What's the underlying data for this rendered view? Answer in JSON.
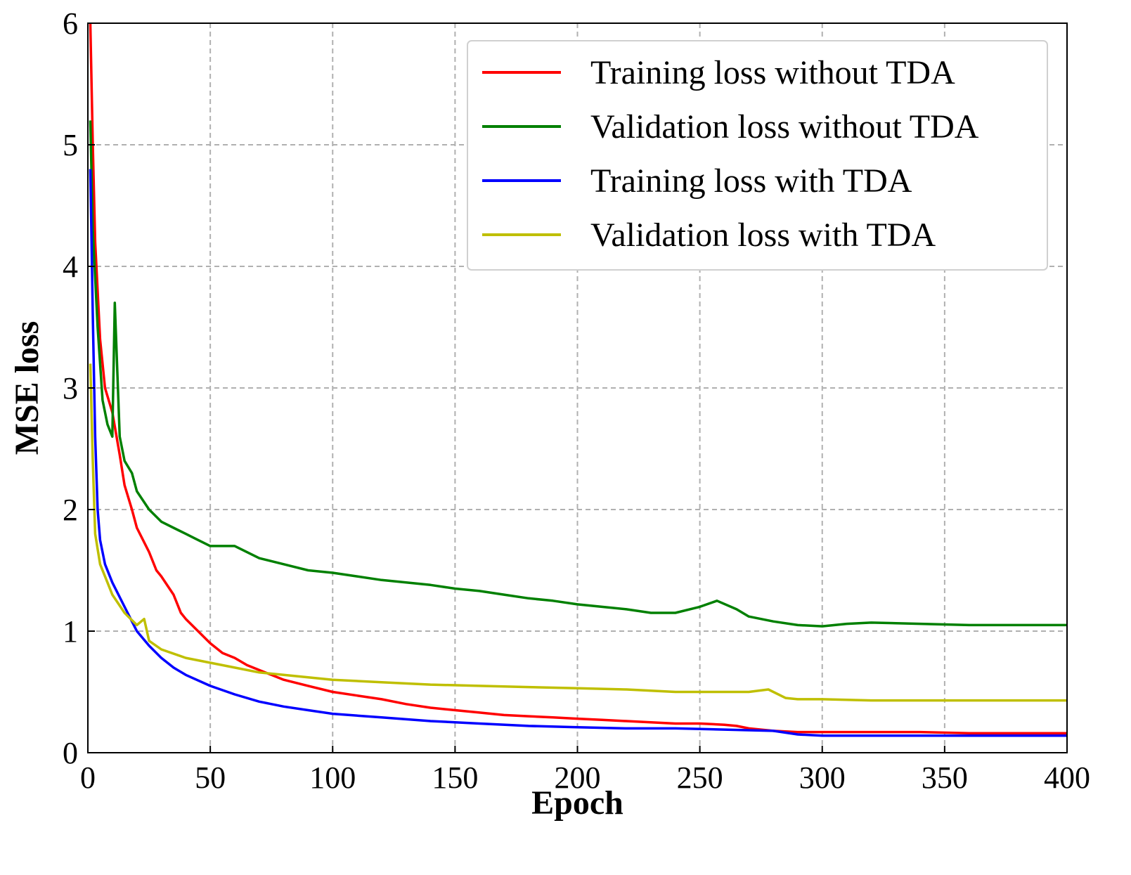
{
  "chart_data": {
    "type": "line",
    "title": "",
    "xlabel": "Epoch",
    "ylabel": "MSE loss",
    "xlim": [
      0,
      400
    ],
    "ylim": [
      0,
      6
    ],
    "xticks": [
      "0",
      "50",
      "100",
      "150",
      "200",
      "250",
      "300",
      "350",
      "400"
    ],
    "yticks": [
      "0",
      "1",
      "2",
      "3",
      "4",
      "5",
      "6"
    ],
    "grid": true,
    "legend_position": "top-right",
    "series": [
      {
        "name": "Training loss without TDA",
        "color": "#ff0000",
        "x": [
          1,
          2,
          3,
          5,
          7,
          10,
          13,
          15,
          18,
          20,
          25,
          28,
          30,
          35,
          38,
          40,
          45,
          50,
          55,
          60,
          65,
          70,
          75,
          80,
          90,
          100,
          110,
          120,
          130,
          140,
          150,
          160,
          170,
          180,
          190,
          200,
          210,
          220,
          230,
          240,
          250,
          260,
          265,
          270,
          280,
          290,
          300,
          320,
          340,
          360,
          380,
          400
        ],
        "y": [
          6.0,
          5.0,
          4.2,
          3.4,
          3.0,
          2.8,
          2.45,
          2.2,
          2.0,
          1.85,
          1.65,
          1.5,
          1.45,
          1.3,
          1.15,
          1.1,
          1.0,
          0.9,
          0.82,
          0.78,
          0.72,
          0.68,
          0.64,
          0.6,
          0.55,
          0.5,
          0.47,
          0.44,
          0.4,
          0.37,
          0.35,
          0.33,
          0.31,
          0.3,
          0.29,
          0.28,
          0.27,
          0.26,
          0.25,
          0.24,
          0.24,
          0.23,
          0.22,
          0.2,
          0.18,
          0.17,
          0.17,
          0.17,
          0.17,
          0.16,
          0.16,
          0.16
        ]
      },
      {
        "name": "Validation loss without TDA",
        "color": "#008000",
        "x": [
          1,
          2,
          4,
          6,
          8,
          10,
          11,
          13,
          15,
          18,
          20,
          25,
          30,
          35,
          40,
          45,
          50,
          60,
          70,
          80,
          90,
          100,
          110,
          120,
          130,
          140,
          150,
          160,
          170,
          180,
          190,
          200,
          210,
          220,
          230,
          240,
          250,
          257,
          265,
          270,
          280,
          290,
          300,
          310,
          320,
          340,
          360,
          380,
          400
        ],
        "y": [
          5.2,
          4.3,
          3.5,
          2.9,
          2.7,
          2.6,
          3.7,
          2.6,
          2.4,
          2.3,
          2.15,
          2.0,
          1.9,
          1.85,
          1.8,
          1.75,
          1.7,
          1.7,
          1.6,
          1.55,
          1.5,
          1.48,
          1.45,
          1.42,
          1.4,
          1.38,
          1.35,
          1.33,
          1.3,
          1.27,
          1.25,
          1.22,
          1.2,
          1.18,
          1.15,
          1.15,
          1.2,
          1.25,
          1.18,
          1.12,
          1.08,
          1.05,
          1.04,
          1.06,
          1.07,
          1.06,
          1.05,
          1.05,
          1.05
        ]
      },
      {
        "name": "Training loss with TDA",
        "color": "#0000ff",
        "x": [
          1,
          2,
          3,
          4,
          5,
          7,
          10,
          15,
          20,
          25,
          30,
          35,
          40,
          50,
          60,
          70,
          80,
          90,
          100,
          120,
          140,
          160,
          180,
          200,
          220,
          240,
          260,
          280,
          290,
          300,
          320,
          340,
          360,
          380,
          400
        ],
        "y": [
          4.8,
          3.6,
          2.6,
          2.0,
          1.75,
          1.55,
          1.4,
          1.2,
          1.0,
          0.88,
          0.78,
          0.7,
          0.64,
          0.55,
          0.48,
          0.42,
          0.38,
          0.35,
          0.32,
          0.29,
          0.26,
          0.24,
          0.22,
          0.21,
          0.2,
          0.2,
          0.19,
          0.18,
          0.15,
          0.14,
          0.14,
          0.14,
          0.14,
          0.14,
          0.14
        ]
      },
      {
        "name": "Validation loss with TDA",
        "color": "#bfbf00",
        "x": [
          1,
          2,
          3,
          5,
          8,
          10,
          15,
          20,
          23,
          25,
          30,
          40,
          50,
          60,
          70,
          80,
          90,
          100,
          120,
          140,
          160,
          180,
          200,
          220,
          240,
          260,
          270,
          278,
          285,
          290,
          300,
          320,
          340,
          360,
          380,
          400
        ],
        "y": [
          3.2,
          2.4,
          1.8,
          1.55,
          1.4,
          1.3,
          1.15,
          1.05,
          1.1,
          0.92,
          0.85,
          0.78,
          0.74,
          0.7,
          0.66,
          0.64,
          0.62,
          0.6,
          0.58,
          0.56,
          0.55,
          0.54,
          0.53,
          0.52,
          0.5,
          0.5,
          0.5,
          0.52,
          0.45,
          0.44,
          0.44,
          0.43,
          0.43,
          0.43,
          0.43,
          0.43
        ]
      }
    ]
  }
}
